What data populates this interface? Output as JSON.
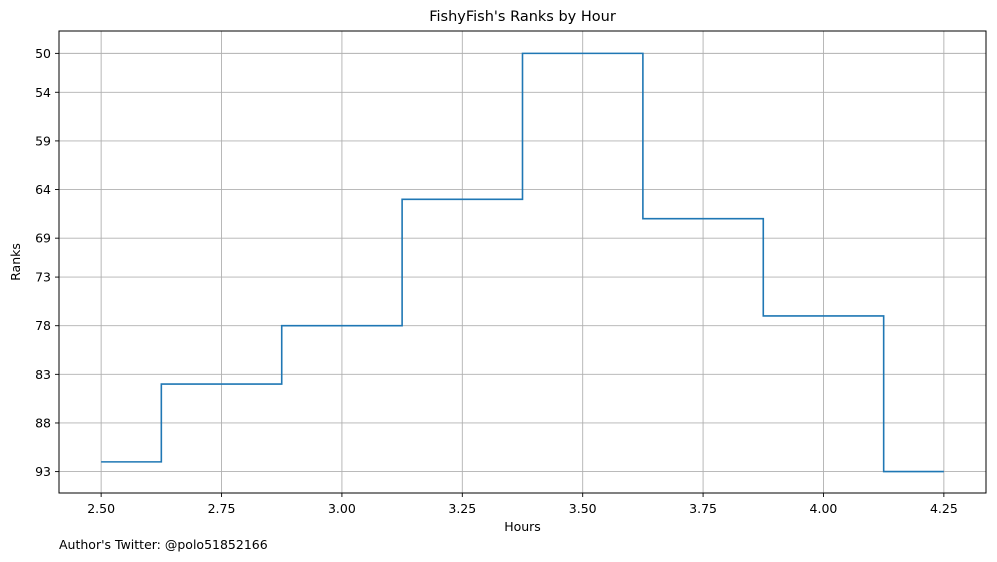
{
  "chart_data": {
    "type": "line",
    "step": "mid",
    "title": "FishyFish's Ranks by Hour",
    "xlabel": "Hours",
    "ylabel": "Ranks",
    "footnote": "Author's Twitter: @polo51852166",
    "xlim": [
      2.4125,
      4.3375
    ],
    "ylim": [
      95.2,
      47.7
    ],
    "y_inverted": true,
    "grid": true,
    "line_color": "#1f77b4",
    "x_ticks": [
      2.5,
      2.75,
      3.0,
      3.25,
      3.5,
      3.75,
      4.0,
      4.25
    ],
    "x_tick_labels": [
      "2.50",
      "2.75",
      "3.00",
      "3.25",
      "3.50",
      "3.75",
      "4.00",
      "4.25"
    ],
    "y_ticks": [
      50,
      54,
      59,
      64,
      69,
      73,
      78,
      83,
      88,
      93
    ],
    "y_tick_labels": [
      "50",
      "54",
      "59",
      "64",
      "69",
      "73",
      "78",
      "83",
      "88",
      "93"
    ],
    "series": [
      {
        "x": [
          2.5,
          2.75,
          3.0,
          3.25,
          3.5,
          3.75,
          4.0,
          4.25
        ],
        "y": [
          92,
          84,
          78,
          65,
          50,
          67,
          77,
          93
        ]
      }
    ]
  }
}
